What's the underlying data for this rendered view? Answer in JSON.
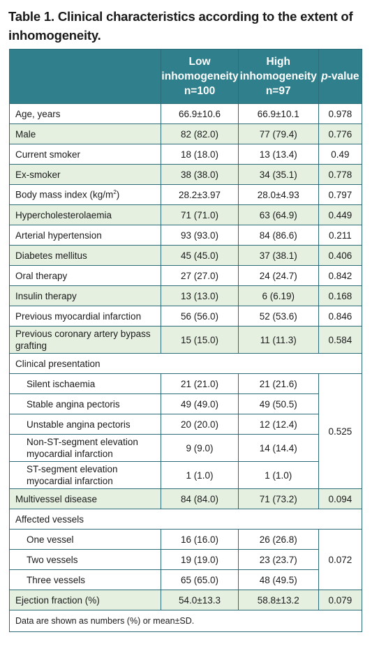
{
  "title": "Table 1. Clinical characteristics according to the extent of inhomogeneity.",
  "header": {
    "col_low_line1": "Low",
    "col_low_line2": "inhomogeneity",
    "col_low_line3": "n=100",
    "col_high_line1": "High",
    "col_high_line2": "inhomogeneity",
    "col_high_line3": "n=97",
    "col_p_italic": "p",
    "col_p_rest": "-value"
  },
  "rows": [
    {
      "label": "Age, years",
      "low": "66.9±10.6",
      "high": "66.9±10.1",
      "p": "0.978"
    },
    {
      "label": "Male",
      "low": "82 (82.0)",
      "high": "77 (79.4)",
      "p": "0.776"
    },
    {
      "label": "Current smoker",
      "low": "18 (18.0)",
      "high": "13 (13.4)",
      "p": "0.49"
    },
    {
      "label": "Ex-smoker",
      "low": "38 (38.0)",
      "high": "34 (35.1)",
      "p": "0.778"
    },
    {
      "label_main": "Body mass index (kg/m",
      "label_sup": "2",
      "label_end": ")",
      "low": "28.2±3.97",
      "high": "28.0±4.93",
      "p": "0.797"
    },
    {
      "label": "Hypercholesterolaemia",
      "low": "71 (71.0)",
      "high": "63 (64.9)",
      "p": "0.449"
    },
    {
      "label": "Arterial hypertension",
      "low": "93 (93.0)",
      "high": "84 (86.6)",
      "p": "0.211"
    },
    {
      "label": "Diabetes mellitus",
      "low": "45 (45.0)",
      "high": "37 (38.1)",
      "p": "0.406"
    },
    {
      "label": "Oral therapy",
      "low": "27 (27.0)",
      "high": "24 (24.7)",
      "p": "0.842"
    },
    {
      "label": "Insulin therapy",
      "low": "13 (13.0)",
      "high": "6 (6.19)",
      "p": "0.168"
    },
    {
      "label": "Previous myocardial infarction",
      "low": "56 (56.0)",
      "high": "52 (53.6)",
      "p": "0.846"
    },
    {
      "label_line1": "Previous coronary artery bypass",
      "label_line2": "grafting",
      "low": "15 (15.0)",
      "high": "11 (11.3)",
      "p": "0.584"
    }
  ],
  "clinical": {
    "heading": "Clinical presentation",
    "p": "0.525",
    "items": [
      {
        "label": "Silent ischaemia",
        "low": "21 (21.0)",
        "high": "21 (21.6)"
      },
      {
        "label": "Stable angina pectoris",
        "low": "49 (49.0)",
        "high": "49 (50.5)"
      },
      {
        "label": "Unstable angina pectoris",
        "low": "20 (20.0)",
        "high": "12 (12.4)"
      },
      {
        "label_line1": "Non-ST-segment elevation",
        "label_line2": "myocardial infarction",
        "low": "9 (9.0)",
        "high": "14 (14.4)"
      },
      {
        "label_line1": "ST-segment elevation",
        "label_line2": "myocardial infarction",
        "low": "1 (1.0)",
        "high": "1 (1.0)"
      }
    ]
  },
  "multivessel": {
    "label": "Multivessel disease",
    "low": "84 (84.0)",
    "high": "71 (73.2)",
    "p": "0.094"
  },
  "affected": {
    "heading": "Affected vessels",
    "p": "0.072",
    "items": [
      {
        "label": "One vessel",
        "low": "16 (16.0)",
        "high": "26 (26.8)"
      },
      {
        "label": "Two vessels",
        "low": "19 (19.0)",
        "high": "23 (23.7)"
      },
      {
        "label": "Three vessels",
        "low": "65 (65.0)",
        "high": "48 (49.5)"
      }
    ]
  },
  "ejection": {
    "label": "Ejection fraction (%)",
    "low": "54.0±13.3",
    "high": "58.8±13.2",
    "p": "0.079"
  },
  "footnote": "Data are shown as numbers (%) or mean±SD.",
  "colors": {
    "header_bg": "#2f7f8c",
    "alt_row_bg": "#e6f0e1",
    "border": "#2c6c78"
  }
}
